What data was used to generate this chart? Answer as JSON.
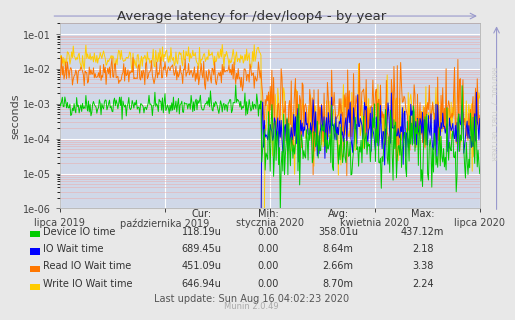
{
  "title": "Average latency for /dev/loop4 - by year",
  "ylabel": "seconds",
  "bg_color": "#e8e8e8",
  "plot_bg_color": "#d0d8e8",
  "grid_color_major": "#ffffff",
  "grid_color_minor": "#e8b0b0",
  "watermark": "RRDTOOL / TOBI OETIKER",
  "munin_version": "Munin 2.0.49",
  "last_update": "Last update: Sun Aug 16 04:02:23 2020",
  "x_ticks": [
    "lipca 2019",
    "października 2019",
    "stycznia 2020",
    "kwietnia 2020",
    "lipca 2020"
  ],
  "x_tick_positions": [
    0.0,
    0.25,
    0.5,
    0.75,
    1.0
  ],
  "legend": [
    {
      "label": "Device IO time",
      "color": "#00cc00"
    },
    {
      "label": "IO Wait time",
      "color": "#0000ff"
    },
    {
      "label": "Read IO Wait time",
      "color": "#ff7700"
    },
    {
      "label": "Write IO Wait time",
      "color": "#ffcc00"
    }
  ],
  "stats_headers": [
    "Cur:",
    "Min:",
    "Avg:",
    "Max:"
  ],
  "stats_rows": [
    [
      "Device IO time",
      "118.19u",
      "0.00",
      "358.01u",
      "437.12m"
    ],
    [
      "IO Wait time",
      "689.45u",
      "0.00",
      "8.64m",
      "2.18"
    ],
    [
      "Read IO Wait time",
      "451.09u",
      "0.00",
      "2.66m",
      "3.38"
    ],
    [
      "Write IO Wait time",
      "646.94u",
      "0.00",
      "8.70m",
      "2.24"
    ]
  ]
}
